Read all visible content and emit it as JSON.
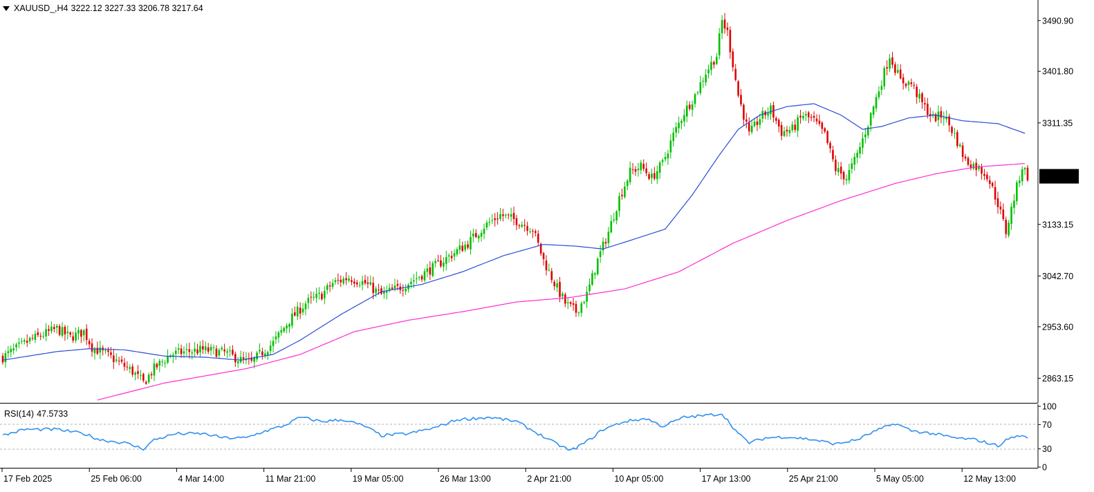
{
  "header": {
    "symbol": "XAUUSD_,H4",
    "ohlc": "3222.12 3227.33 3206.78 3217.64"
  },
  "rsi_header": {
    "name": "RSI(14)",
    "value": "47.5733"
  },
  "colors": {
    "bull": "#00c000",
    "bear": "#e00000",
    "ma_fast": "#2a4bd7",
    "ma_slow": "#ff2ad4",
    "rsi": "#2f8ff0",
    "last_price_bg": "#000000",
    "last_price_fg": "#ffffff"
  },
  "chart_data": {
    "type": "candlestick",
    "price_axis": {
      "ticks": [
        "3490.90",
        "3401.80",
        "3311.35",
        "3133.15",
        "3042.70",
        "2953.60",
        "2863.15"
      ],
      "ylim": [
        2820,
        3510
      ],
      "last_price": "3217.64"
    },
    "time_axis": {
      "labels": [
        "17 Feb 2025",
        "25 Feb 06:00",
        "4 Mar 14:00",
        "11 Mar 21:00",
        "19 Mar 05:00",
        "26 Mar 13:00",
        "2 Apr 21:00",
        "10 Apr 05:00",
        "17 Apr 13:00",
        "25 Apr 21:00",
        "5 May 05:00",
        "12 May 13:00"
      ]
    },
    "price_path": [
      [
        0,
        2900
      ],
      [
        10,
        2930
      ],
      [
        20,
        2950
      ],
      [
        25,
        2935
      ],
      [
        30,
        2945
      ],
      [
        33,
        2918
      ],
      [
        40,
        2900
      ],
      [
        48,
        2875
      ],
      [
        52,
        2855
      ],
      [
        56,
        2880
      ],
      [
        62,
        2905
      ],
      [
        68,
        2910
      ],
      [
        74,
        2913
      ],
      [
        82,
        2908
      ],
      [
        88,
        2895
      ],
      [
        92,
        2890
      ],
      [
        95,
        2905
      ],
      [
        100,
        2925
      ],
      [
        106,
        2965
      ],
      [
        112,
        2995
      ],
      [
        118,
        3010
      ],
      [
        122,
        3030
      ],
      [
        128,
        3040
      ],
      [
        134,
        3030
      ],
      [
        140,
        3010
      ],
      [
        148,
        3025
      ],
      [
        155,
        3045
      ],
      [
        160,
        3060
      ],
      [
        166,
        3080
      ],
      [
        172,
        3100
      ],
      [
        178,
        3130
      ],
      [
        184,
        3150
      ],
      [
        190,
        3140
      ],
      [
        196,
        3125
      ],
      [
        200,
        3070
      ],
      [
        204,
        3030
      ],
      [
        208,
        2995
      ],
      [
        212,
        2980
      ],
      [
        216,
        3010
      ],
      [
        220,
        3070
      ],
      [
        224,
        3120
      ],
      [
        228,
        3180
      ],
      [
        232,
        3225
      ],
      [
        236,
        3235
      ],
      [
        240,
        3215
      ],
      [
        244,
        3240
      ],
      [
        248,
        3290
      ],
      [
        252,
        3330
      ],
      [
        256,
        3360
      ],
      [
        260,
        3400
      ],
      [
        264,
        3430
      ],
      [
        266,
        3490
      ],
      [
        268,
        3470
      ],
      [
        272,
        3360
      ],
      [
        276,
        3290
      ],
      [
        280,
        3320
      ],
      [
        284,
        3335
      ],
      [
        288,
        3295
      ],
      [
        292,
        3300
      ],
      [
        296,
        3325
      ],
      [
        300,
        3315
      ],
      [
        304,
        3290
      ],
      [
        308,
        3230
      ],
      [
        312,
        3215
      ],
      [
        316,
        3255
      ],
      [
        320,
        3310
      ],
      [
        324,
        3370
      ],
      [
        328,
        3430
      ],
      [
        332,
        3385
      ],
      [
        336,
        3380
      ],
      [
        340,
        3345
      ],
      [
        344,
        3320
      ],
      [
        348,
        3325
      ],
      [
        352,
        3290
      ],
      [
        356,
        3245
      ],
      [
        360,
        3235
      ],
      [
        364,
        3220
      ],
      [
        368,
        3170
      ],
      [
        371,
        3120
      ],
      [
        374,
        3180
      ],
      [
        377,
        3235
      ],
      [
        379,
        3218
      ]
    ],
    "ma_fast": [
      [
        0,
        2895
      ],
      [
        20,
        2910
      ],
      [
        32,
        2915
      ],
      [
        45,
        2913
      ],
      [
        60,
        2902
      ],
      [
        75,
        2900
      ],
      [
        88,
        2895
      ],
      [
        100,
        2905
      ],
      [
        110,
        2930
      ],
      [
        125,
        2975
      ],
      [
        140,
        3015
      ],
      [
        155,
        3028
      ],
      [
        170,
        3050
      ],
      [
        185,
        3078
      ],
      [
        200,
        3098
      ],
      [
        212,
        3095
      ],
      [
        222,
        3090
      ],
      [
        232,
        3105
      ],
      [
        245,
        3125
      ],
      [
        255,
        3185
      ],
      [
        265,
        3255
      ],
      [
        272,
        3300
      ],
      [
        280,
        3325
      ],
      [
        290,
        3340
      ],
      [
        300,
        3345
      ],
      [
        310,
        3325
      ],
      [
        318,
        3300
      ],
      [
        325,
        3305
      ],
      [
        335,
        3320
      ],
      [
        345,
        3325
      ],
      [
        355,
        3315
      ],
      [
        368,
        3310
      ],
      [
        378,
        3293
      ]
    ],
    "ma_slow": [
      [
        35,
        2825
      ],
      [
        60,
        2855
      ],
      [
        90,
        2880
      ],
      [
        110,
        2905
      ],
      [
        130,
        2945
      ],
      [
        150,
        2965
      ],
      [
        170,
        2980
      ],
      [
        190,
        2997
      ],
      [
        210,
        3005
      ],
      [
        230,
        3020
      ],
      [
        250,
        3050
      ],
      [
        270,
        3100
      ],
      [
        290,
        3140
      ],
      [
        310,
        3175
      ],
      [
        330,
        3205
      ],
      [
        345,
        3222
      ],
      [
        360,
        3234
      ],
      [
        378,
        3240
      ]
    ],
    "rsi": {
      "ticks": [
        "100",
        "70",
        "30",
        "0"
      ],
      "levels": [
        30,
        70
      ],
      "ylim": [
        0,
        100
      ],
      "path": [
        [
          0,
          52
        ],
        [
          8,
          62
        ],
        [
          20,
          62
        ],
        [
          30,
          55
        ],
        [
          36,
          45
        ],
        [
          45,
          40
        ],
        [
          52,
          30
        ],
        [
          56,
          45
        ],
        [
          64,
          55
        ],
        [
          74,
          55
        ],
        [
          82,
          48
        ],
        [
          90,
          48
        ],
        [
          96,
          58
        ],
        [
          104,
          68
        ],
        [
          110,
          82
        ],
        [
          118,
          75
        ],
        [
          126,
          78
        ],
        [
          134,
          67
        ],
        [
          140,
          52
        ],
        [
          150,
          55
        ],
        [
          160,
          65
        ],
        [
          168,
          78
        ],
        [
          180,
          82
        ],
        [
          190,
          75
        ],
        [
          198,
          55
        ],
        [
          204,
          40
        ],
        [
          210,
          27
        ],
        [
          216,
          42
        ],
        [
          222,
          62
        ],
        [
          230,
          75
        ],
        [
          238,
          80
        ],
        [
          244,
          67
        ],
        [
          252,
          82
        ],
        [
          260,
          85
        ],
        [
          266,
          88
        ],
        [
          272,
          55
        ],
        [
          276,
          40
        ],
        [
          282,
          48
        ],
        [
          290,
          50
        ],
        [
          300,
          45
        ],
        [
          308,
          38
        ],
        [
          316,
          45
        ],
        [
          322,
          58
        ],
        [
          330,
          72
        ],
        [
          336,
          60
        ],
        [
          344,
          55
        ],
        [
          352,
          48
        ],
        [
          360,
          45
        ],
        [
          368,
          35
        ],
        [
          372,
          47
        ],
        [
          376,
          52
        ],
        [
          379,
          47.57
        ]
      ]
    }
  }
}
